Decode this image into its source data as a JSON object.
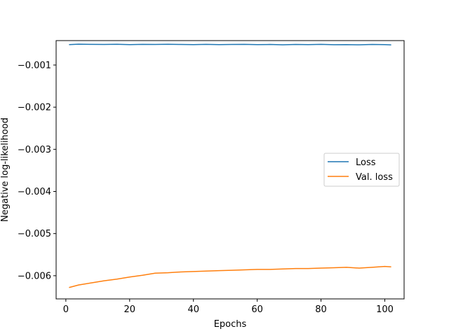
{
  "chart_data": {
    "type": "line",
    "title": "",
    "xlabel": "Epochs",
    "ylabel": "Negative log-likelihood",
    "xlim": [
      -3.05,
      106.05
    ],
    "ylim": [
      -0.00655,
      -0.00042
    ],
    "xticks": [
      0,
      20,
      40,
      60,
      80,
      100
    ],
    "xtick_labels": [
      "0",
      "20",
      "40",
      "60",
      "80",
      "100"
    ],
    "yticks": [
      -0.001,
      -0.002,
      -0.003,
      -0.004,
      -0.005,
      -0.006
    ],
    "ytick_labels": [
      "−0.001",
      "−0.002",
      "−0.003",
      "−0.004",
      "−0.005",
      "−0.006"
    ],
    "grid": false,
    "legend_position": "center-right",
    "series": [
      {
        "name": "Loss",
        "color": "#1f77b4",
        "x": [
          1,
          4,
          8,
          12,
          16,
          20,
          24,
          28,
          32,
          36,
          40,
          44,
          48,
          52,
          56,
          60,
          64,
          68,
          72,
          76,
          80,
          84,
          88,
          92,
          96,
          100,
          102
        ],
        "y": [
          -0.000515,
          -0.000505,
          -0.00051,
          -0.000512,
          -0.000508,
          -0.000515,
          -0.00051,
          -0.000512,
          -0.000508,
          -0.000512,
          -0.000515,
          -0.00051,
          -0.000515,
          -0.000512,
          -0.00051,
          -0.000515,
          -0.000512,
          -0.00052,
          -0.000512,
          -0.000515,
          -0.00051,
          -0.000518,
          -0.000515,
          -0.00052,
          -0.000512,
          -0.000515,
          -0.000522
        ]
      },
      {
        "name": "Val. loss",
        "color": "#ff7f0e",
        "x": [
          1,
          4,
          8,
          12,
          16,
          20,
          24,
          28,
          32,
          36,
          40,
          44,
          48,
          52,
          56,
          60,
          64,
          68,
          72,
          76,
          80,
          84,
          88,
          92,
          96,
          100,
          102
        ],
        "y": [
          -0.00628,
          -0.00622,
          -0.00617,
          -0.00612,
          -0.00608,
          -0.00603,
          -0.00599,
          -0.00594,
          -0.00593,
          -0.00591,
          -0.0059,
          -0.00589,
          -0.00588,
          -0.00587,
          -0.00586,
          -0.00585,
          -0.00585,
          -0.00584,
          -0.00583,
          -0.00583,
          -0.00582,
          -0.00581,
          -0.0058,
          -0.00582,
          -0.0058,
          -0.00578,
          -0.00579
        ]
      }
    ]
  }
}
